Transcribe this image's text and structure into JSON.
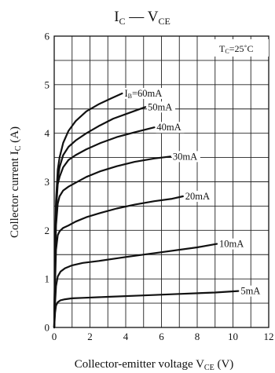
{
  "chart_data": {
    "type": "line",
    "title": {
      "main": "I",
      "sub1": "C",
      "dash": " — ",
      "main2": "V",
      "sub2": "CE"
    },
    "xlabel": {
      "text": "Collector-emitter voltage  V",
      "sub": "CE",
      "unit": "  (V)"
    },
    "ylabel": {
      "text": "Collector current  I",
      "sub": "C",
      "unit": "  (A)"
    },
    "condition": {
      "prefix": "T",
      "sub": "C",
      "value": "=25˚C"
    },
    "xlim": [
      0,
      12
    ],
    "ylim": [
      0,
      6
    ],
    "xticks": [
      "0",
      "2",
      "4",
      "6",
      "8",
      "10",
      "12"
    ],
    "yticks": [
      "0",
      "1",
      "2",
      "3",
      "4",
      "5",
      "6"
    ],
    "grid": true,
    "series": [
      {
        "name": "IB=60mA",
        "label": {
          "main": "I",
          "sub": "B",
          "rest": "=60mA"
        },
        "x": [
          0,
          0.05,
          0.1,
          0.2,
          0.3,
          0.5,
          0.8,
          1.2,
          1.8,
          2.5,
          3.2,
          3.8
        ],
        "y": [
          0,
          1.5,
          2.6,
          3.25,
          3.5,
          3.8,
          4.05,
          4.25,
          4.45,
          4.6,
          4.72,
          4.82
        ]
      },
      {
        "name": "50mA",
        "label": {
          "main": "50mA"
        },
        "x": [
          0,
          0.05,
          0.1,
          0.2,
          0.3,
          0.5,
          0.8,
          1.2,
          1.8,
          2.5,
          3.3,
          4.2,
          5.1
        ],
        "y": [
          0,
          1.4,
          2.5,
          3.05,
          3.3,
          3.55,
          3.72,
          3.85,
          4.0,
          4.15,
          4.3,
          4.42,
          4.54
        ]
      },
      {
        "name": "40mA",
        "label": {
          "main": "40mA"
        },
        "x": [
          0,
          0.05,
          0.1,
          0.2,
          0.3,
          0.5,
          0.8,
          1.2,
          1.8,
          2.6,
          3.5,
          4.5,
          5.6
        ],
        "y": [
          0,
          1.3,
          2.4,
          2.95,
          3.1,
          3.3,
          3.45,
          3.55,
          3.67,
          3.8,
          3.92,
          4.02,
          4.12
        ]
      },
      {
        "name": "30mA",
        "label": {
          "main": "30mA"
        },
        "x": [
          0,
          0.05,
          0.1,
          0.2,
          0.3,
          0.5,
          0.8,
          1.2,
          1.8,
          2.6,
          3.5,
          4.5,
          5.6,
          6.5
        ],
        "y": [
          0,
          1.1,
          2.1,
          2.55,
          2.7,
          2.82,
          2.9,
          2.98,
          3.1,
          3.22,
          3.32,
          3.41,
          3.48,
          3.52
        ]
      },
      {
        "name": "20mA",
        "label": {
          "main": "20mA"
        },
        "x": [
          0,
          0.05,
          0.1,
          0.2,
          0.3,
          0.5,
          0.8,
          1.2,
          1.8,
          2.6,
          3.5,
          4.5,
          5.6,
          6.6,
          7.2
        ],
        "y": [
          0,
          0.9,
          1.6,
          1.9,
          1.98,
          2.05,
          2.1,
          2.18,
          2.27,
          2.36,
          2.45,
          2.53,
          2.6,
          2.65,
          2.7
        ]
      },
      {
        "name": "10mA",
        "label": {
          "main": "10mA"
        },
        "x": [
          0,
          0.05,
          0.1,
          0.2,
          0.35,
          0.6,
          1.0,
          1.6,
          2.5,
          4.0,
          6.0,
          8.0,
          9.1
        ],
        "y": [
          0,
          0.5,
          0.85,
          1.05,
          1.15,
          1.22,
          1.28,
          1.33,
          1.37,
          1.45,
          1.55,
          1.65,
          1.72
        ]
      },
      {
        "name": "5mA",
        "label": {
          "main": "5mA"
        },
        "x": [
          0,
          0.05,
          0.1,
          0.2,
          0.35,
          0.6,
          1.0,
          1.6,
          3.0,
          5.0,
          7.0,
          9.0,
          10.3
        ],
        "y": [
          0,
          0.3,
          0.45,
          0.52,
          0.56,
          0.58,
          0.6,
          0.61,
          0.63,
          0.66,
          0.69,
          0.72,
          0.75
        ]
      }
    ]
  }
}
